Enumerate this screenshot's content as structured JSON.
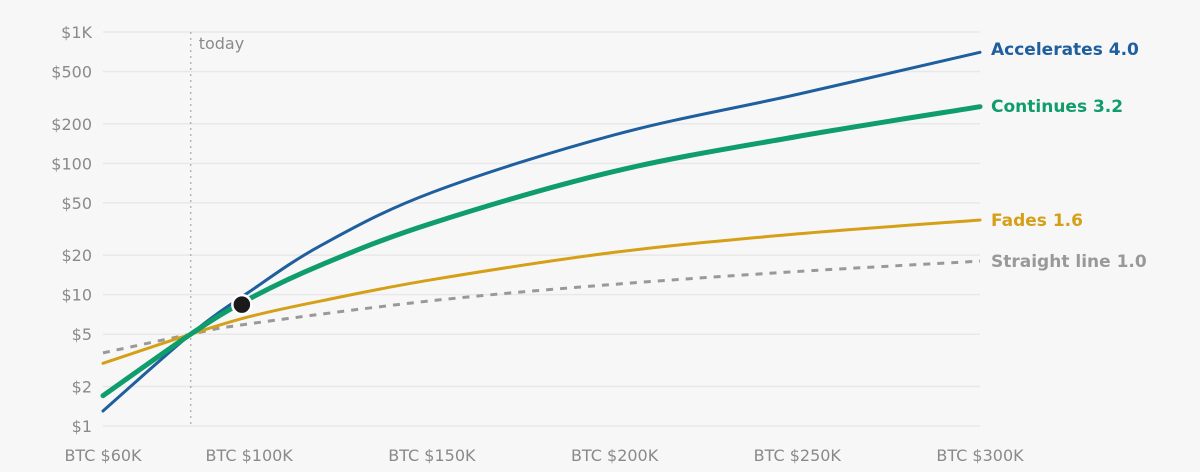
{
  "chart_data": {
    "type": "line",
    "title": "",
    "xlabel": "",
    "ylabel": "",
    "x_scale": "linear",
    "y_scale": "log",
    "xlim": [
      60000,
      300000
    ],
    "ylim": [
      1,
      1000
    ],
    "x_ticks": [
      {
        "value": 60000,
        "label": "BTC $60K"
      },
      {
        "value": 100000,
        "label": "BTC $100K"
      },
      {
        "value": 150000,
        "label": "BTC $150K"
      },
      {
        "value": 200000,
        "label": "BTC $200K"
      },
      {
        "value": 250000,
        "label": "BTC $250K"
      },
      {
        "value": 300000,
        "label": "BTC $300K"
      }
    ],
    "y_ticks": [
      {
        "value": 1000,
        "label": "$1K"
      },
      {
        "value": 500,
        "label": "$500"
      },
      {
        "value": 200,
        "label": "$200"
      },
      {
        "value": 100,
        "label": "$100"
      },
      {
        "value": 50,
        "label": "$50"
      },
      {
        "value": 20,
        "label": "$20"
      },
      {
        "value": 10,
        "label": "$10"
      },
      {
        "value": 5,
        "label": "$5"
      },
      {
        "value": 2,
        "label": "$2"
      },
      {
        "value": 1,
        "label": "$1"
      }
    ],
    "grid": true,
    "reference_line": {
      "x": 84000,
      "label": "today",
      "style": "dotted",
      "color": "#b5b5b5"
    },
    "current_point": {
      "x": 98000,
      "y": 8.4,
      "color": "#1a1a1a"
    },
    "legend": "direct labels at right end of lines",
    "series": [
      {
        "name": "Accelerates 4.0",
        "color": "#1f5f9e",
        "style": "solid",
        "x": [
          60000,
          84000,
          100000,
          120000,
          150000,
          200000,
          250000,
          300000
        ],
        "values": [
          1.3,
          5,
          10.5,
          24,
          60,
          165,
          335,
          700
        ]
      },
      {
        "name": "Continues 3.2",
        "color": "#0f9d6b",
        "style": "solid-thick",
        "x": [
          60000,
          84000,
          100000,
          120000,
          150000,
          200000,
          250000,
          300000
        ],
        "values": [
          1.7,
          5,
          9.3,
          17,
          35,
          87,
          160,
          270
        ]
      },
      {
        "name": "Fades 1.6",
        "color": "#d5a017",
        "style": "solid",
        "x": [
          60000,
          84000,
          100000,
          120000,
          150000,
          200000,
          250000,
          300000
        ],
        "values": [
          3,
          5,
          6.8,
          9,
          13,
          21,
          29,
          37
        ]
      },
      {
        "name": "Straight line 1.0",
        "color": "#999999",
        "style": "dashed",
        "x": [
          60000,
          84000,
          100000,
          150000,
          200000,
          250000,
          300000
        ],
        "values": [
          3.6,
          5,
          6,
          9,
          12,
          15,
          18
        ]
      }
    ]
  }
}
